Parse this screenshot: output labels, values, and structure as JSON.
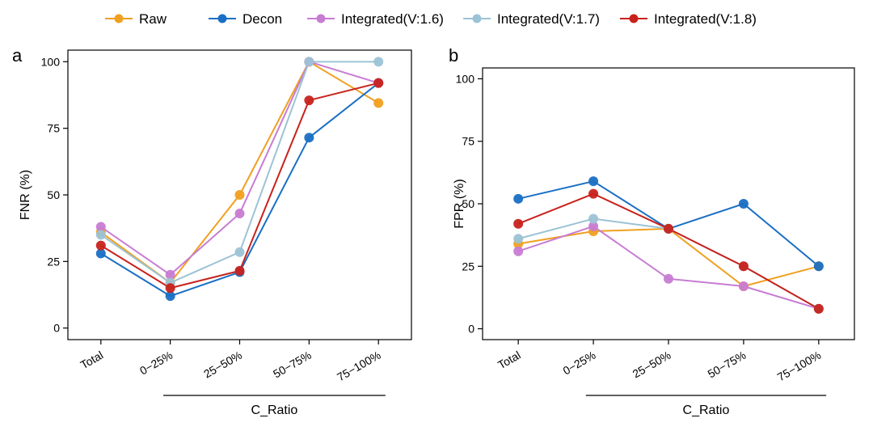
{
  "legend": [
    {
      "name": "Raw",
      "color": "#F0A020"
    },
    {
      "name": "Decon",
      "color": "#1A6FC4"
    },
    {
      "name": "Integrated(V:1.6)",
      "color": "#C77CD3"
    },
    {
      "name": "Integrated(V:1.7)",
      "color": "#9CC3D5"
    },
    {
      "name": "Integrated(V:1.8)",
      "color": "#C8221C"
    }
  ],
  "chart_data": [
    {
      "type": "line",
      "panel_label": "a",
      "ylabel": "FNR (%)",
      "xlabel": "C_Ratio",
      "ylim": [
        0,
        100
      ],
      "yticks": [
        "0",
        "25",
        "50",
        "75",
        "100"
      ],
      "categories": [
        "Total",
        "0−25%",
        "25−50%",
        "50−75%",
        "75−100%"
      ],
      "grid": false,
      "series": [
        {
          "name": "Raw",
          "color": "#F0A020",
          "values": [
            36,
            17,
            50,
            100,
            84.5
          ]
        },
        {
          "name": "Decon",
          "color": "#1A6FC4",
          "values": [
            28,
            12,
            21,
            71.5,
            92
          ]
        },
        {
          "name": "Integrated(V:1.6)",
          "color": "#C77CD3",
          "values": [
            38,
            20,
            43,
            100,
            92
          ]
        },
        {
          "name": "Integrated(V:1.7)",
          "color": "#9CC3D5",
          "values": [
            35,
            17,
            28.5,
            100,
            100
          ]
        },
        {
          "name": "Integrated(V:1.8)",
          "color": "#C8221C",
          "values": [
            31,
            15,
            21.5,
            85.5,
            92
          ]
        }
      ]
    },
    {
      "type": "line",
      "panel_label": "b",
      "ylabel": "FPR (%)",
      "xlabel": "C_Ratio",
      "ylim": [
        0,
        100
      ],
      "yticks": [
        "0",
        "25",
        "50",
        "75",
        "100"
      ],
      "categories": [
        "Total",
        "0−25%",
        "25−50%",
        "50−75%",
        "75−100%"
      ],
      "grid": false,
      "series": [
        {
          "name": "Raw",
          "color": "#F0A020",
          "values": [
            34,
            39,
            40,
            17,
            25
          ]
        },
        {
          "name": "Decon",
          "color": "#1A6FC4",
          "values": [
            52,
            59,
            40,
            50,
            25
          ]
        },
        {
          "name": "Integrated(V:1.6)",
          "color": "#C77CD3",
          "values": [
            31,
            41,
            20,
            17,
            8
          ]
        },
        {
          "name": "Integrated(V:1.7)",
          "color": "#9CC3D5",
          "values": [
            36,
            44,
            40,
            25,
            8
          ]
        },
        {
          "name": "Integrated(V:1.8)",
          "color": "#C8221C",
          "values": [
            42,
            54,
            40,
            25,
            8
          ]
        }
      ]
    }
  ]
}
